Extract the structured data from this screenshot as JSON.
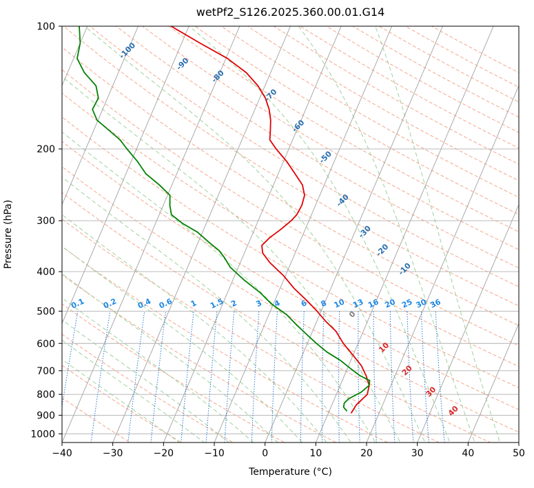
{
  "chart_data": {
    "type": "line",
    "title": "wetPf2_S126.2025.360.00.01.G14",
    "xlabel": "Temperature (°C)",
    "ylabel": "Pressure (hPa)",
    "xlim": [
      -40,
      50
    ],
    "ylim": [
      1050,
      100
    ],
    "y_scale": "log",
    "x_ticks": [
      -40,
      -30,
      -20,
      -10,
      0,
      10,
      20,
      30,
      40,
      50
    ],
    "x_tick_labels": [
      "−40",
      "−30",
      "−20",
      "−10",
      "0",
      "10",
      "20",
      "30",
      "40",
      "50"
    ],
    "y_ticks": [
      1000,
      900,
      800,
      700,
      600,
      500,
      400,
      300,
      200,
      100
    ],
    "y_tick_labels": [
      "1000",
      "900",
      "800",
      "700",
      "600",
      "500",
      "400",
      "300",
      "200",
      "100"
    ],
    "grid": true,
    "skew_factor": 35,
    "series": [
      {
        "id": "temperature",
        "color": "#e00000",
        "points": [
          [
            890,
            14.5
          ],
          [
            850,
            14.8
          ],
          [
            800,
            16.1
          ],
          [
            760,
            15.7
          ],
          [
            720,
            14.3
          ],
          [
            680,
            12.5
          ],
          [
            640,
            9.9
          ],
          [
            600,
            7.1
          ],
          [
            560,
            4.6
          ],
          [
            530,
            1.8
          ],
          [
            500,
            -0.8
          ],
          [
            470,
            -3.8
          ],
          [
            440,
            -7.2
          ],
          [
            410,
            -10.3
          ],
          [
            380,
            -14.2
          ],
          [
            360,
            -16.4
          ],
          [
            345,
            -17.2
          ],
          [
            330,
            -16.3
          ],
          [
            315,
            -14.8
          ],
          [
            300,
            -13.5
          ],
          [
            290,
            -12.9
          ],
          [
            275,
            -12.7
          ],
          [
            260,
            -13.0
          ],
          [
            245,
            -14.3
          ],
          [
            230,
            -16.7
          ],
          [
            215,
            -19.3
          ],
          [
            200,
            -22.5
          ],
          [
            190,
            -24.5
          ],
          [
            180,
            -25.2
          ],
          [
            170,
            -26.0
          ],
          [
            160,
            -27.2
          ],
          [
            150,
            -28.9
          ],
          [
            140,
            -31.4
          ],
          [
            130,
            -34.8
          ],
          [
            120,
            -39.7
          ],
          [
            110,
            -46.4
          ],
          [
            100,
            -53.5
          ]
        ]
      },
      {
        "id": "dewpoint",
        "color": "#008000",
        "points": [
          [
            880,
            13.5
          ],
          [
            860,
            12.5
          ],
          [
            840,
            12.3
          ],
          [
            820,
            12.8
          ],
          [
            790,
            14.7
          ],
          [
            760,
            15.7
          ],
          [
            740,
            15.4
          ],
          [
            720,
            13.1
          ],
          [
            690,
            10.5
          ],
          [
            660,
            7.9
          ],
          [
            630,
            4.6
          ],
          [
            600,
            1.8
          ],
          [
            570,
            -0.9
          ],
          [
            540,
            -3.7
          ],
          [
            510,
            -6.5
          ],
          [
            480,
            -10.4
          ],
          [
            450,
            -13.6
          ],
          [
            420,
            -17.7
          ],
          [
            390,
            -21.6
          ],
          [
            370,
            -23.5
          ],
          [
            355,
            -25.2
          ],
          [
            340,
            -27.7
          ],
          [
            320,
            -31.0
          ],
          [
            305,
            -34.6
          ],
          [
            290,
            -37.6
          ],
          [
            275,
            -38.7
          ],
          [
            260,
            -39.5
          ],
          [
            245,
            -42.5
          ],
          [
            230,
            -46.1
          ],
          [
            215,
            -48.7
          ],
          [
            200,
            -51.9
          ],
          [
            190,
            -54.0
          ],
          [
            180,
            -57.0
          ],
          [
            170,
            -60.2
          ],
          [
            160,
            -62.0
          ],
          [
            150,
            -61.8
          ],
          [
            140,
            -63.3
          ],
          [
            130,
            -66.7
          ],
          [
            120,
            -69.3
          ],
          [
            110,
            -70.0
          ],
          [
            100,
            -71.6
          ]
        ]
      }
    ],
    "dry_adiabat_labels": [
      "-100",
      "-90",
      "-80",
      "-70",
      "-60",
      "-50",
      "-40",
      "-30",
      "-20",
      "-10"
    ],
    "moist_adiabat_labels": [
      "0",
      "10",
      "20",
      "30",
      "40"
    ],
    "mixing_ratio_labels": [
      "0.1",
      "0.2",
      "0.4",
      "0.6",
      "1",
      "1.5",
      "2",
      "3",
      "4",
      "6",
      "8",
      "10",
      "13",
      "16",
      "20",
      "25",
      "30",
      "36"
    ],
    "colors": {
      "grid": "#b0b0b0",
      "isotherm": "#a0a0a0",
      "dry_adiabat": "#f6a58a",
      "moist_adiabat": "#9cd19c",
      "mixing_ratio": "#1f77d4",
      "dry_label": "#2a6fb0",
      "moist_label": "#d62728",
      "mixing_label": "#1e88e5"
    }
  }
}
